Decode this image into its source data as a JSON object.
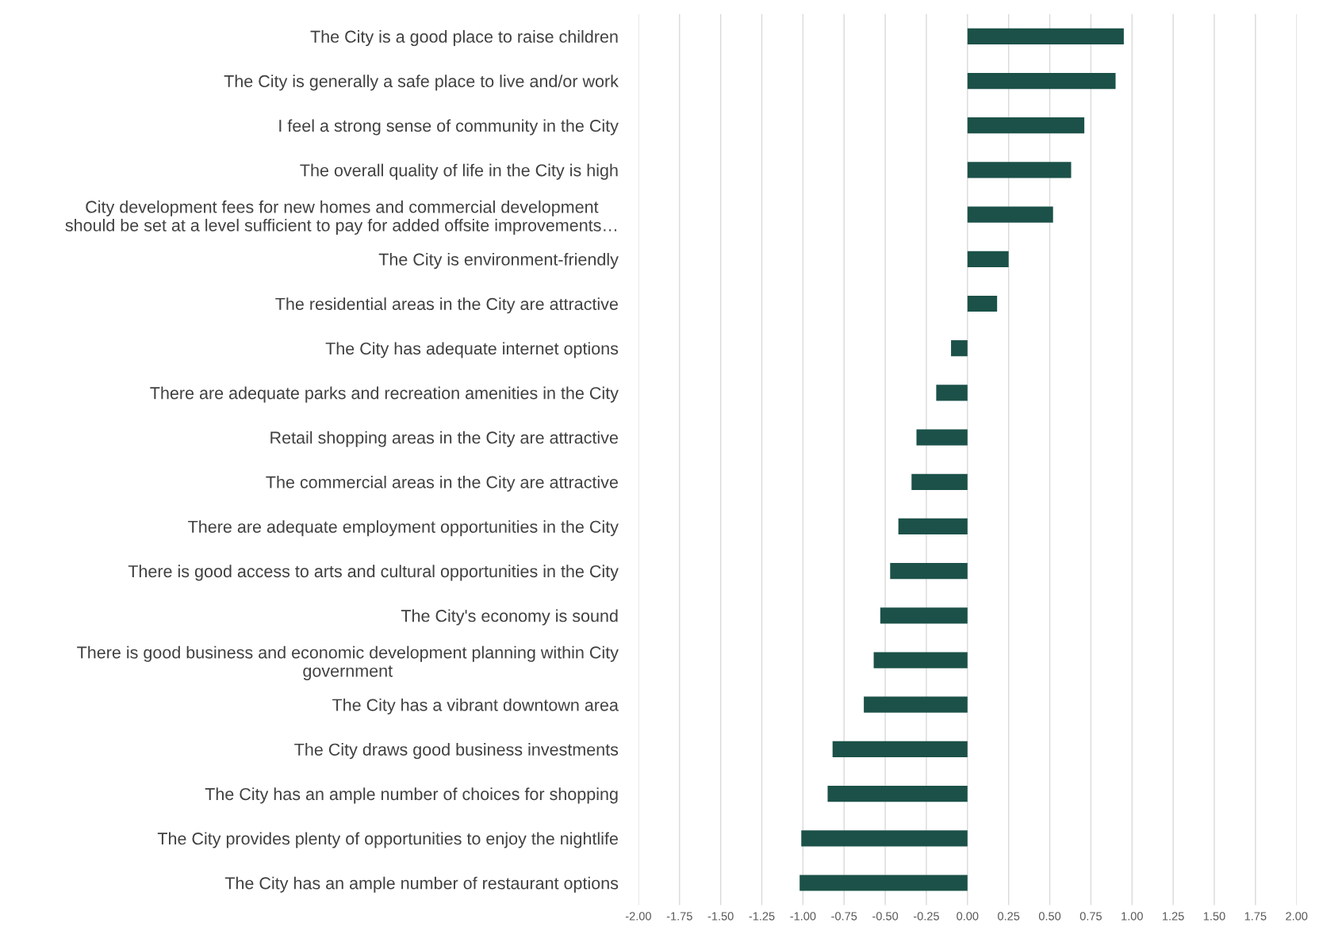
{
  "chart_data": {
    "type": "bar",
    "orientation": "horizontal",
    "color": "#1b5148",
    "categories": [
      "The City is a good place to raise children",
      "The City is generally a safe place to live and/or work",
      "I feel a strong sense of community in the City",
      "The overall quality of life in the City is high",
      "City development fees for new homes and commercial development\nshould be set at a level sufficient to pay for added offsite improvements…",
      "The City is environment-friendly",
      "The residential areas in the City are attractive",
      "The City has adequate internet options",
      "There are adequate parks and recreation amenities in the City",
      "Retail shopping areas in the City are attractive",
      "The commercial areas in the City are attractive",
      "There are adequate employment opportunities in the City",
      "There is good access to arts and cultural opportunities in the City",
      "The City's economy is sound",
      "There is good business and economic development planning within City\ngovernment",
      "The City has a vibrant downtown area",
      "The City draws good business investments",
      "The City has an ample number of choices for shopping",
      "The City provides plenty of opportunities to enjoy the nightlife",
      "The City has an ample number of restaurant options"
    ],
    "values": [
      0.95,
      0.9,
      0.71,
      0.63,
      0.52,
      0.25,
      0.18,
      -0.1,
      -0.19,
      -0.31,
      -0.34,
      -0.42,
      -0.47,
      -0.53,
      -0.57,
      -0.63,
      -0.82,
      -0.85,
      -1.01,
      -1.02
    ],
    "xlim": [
      -2.0,
      2.0
    ],
    "xticks": [
      {
        "value": -2.0,
        "label": "-2.00"
      },
      {
        "value": -1.75,
        "label": "-1.75"
      },
      {
        "value": -1.5,
        "label": "-1.50"
      },
      {
        "value": -1.25,
        "label": "-1.25"
      },
      {
        "value": -1.0,
        "label": "-1.00"
      },
      {
        "value": -0.75,
        "label": "-0.75"
      },
      {
        "value": -0.5,
        "label": "-0.50"
      },
      {
        "value": -0.25,
        "label": "-0.25"
      },
      {
        "value": 0.0,
        "label": "0.00"
      },
      {
        "value": 0.25,
        "label": "0.25"
      },
      {
        "value": 0.5,
        "label": "0.50"
      },
      {
        "value": 0.75,
        "label": "0.75"
      },
      {
        "value": 1.0,
        "label": "1.00"
      },
      {
        "value": 1.25,
        "label": "1.25"
      },
      {
        "value": 1.5,
        "label": "1.50"
      },
      {
        "value": 1.75,
        "label": "1.75"
      },
      {
        "value": 2.0,
        "label": "2.00"
      }
    ],
    "grid": "x",
    "legend": false
  }
}
